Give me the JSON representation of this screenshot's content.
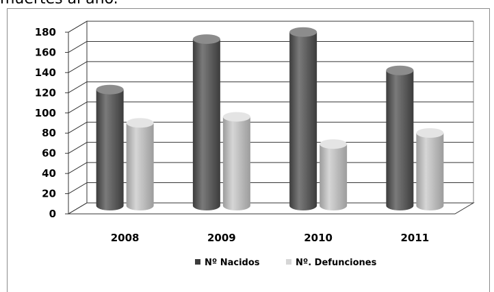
{
  "header_fragment": "muertes al año.",
  "colors": {
    "series1_light": "#7a7a7a",
    "series1_dark": "#3c3c3c",
    "series1_top": "#8c8c8c",
    "series2_light": "#d6d6d6",
    "series2_dark": "#9c9c9c",
    "series2_top": "#e4e4e4",
    "grid": "#333333",
    "floor": "#ffffff"
  },
  "chart_data": {
    "type": "bar",
    "categories": [
      "2008",
      "2009",
      "2010",
      "2011"
    ],
    "series": [
      {
        "name": "Nº Nacidos",
        "values": [
          115,
          165,
          172,
          134
        ]
      },
      {
        "name": "Nº. Defunciones",
        "values": [
          82,
          88,
          61,
          72
        ]
      }
    ],
    "ylim": [
      0,
      180
    ],
    "yticks": [
      0,
      20,
      40,
      60,
      80,
      100,
      120,
      140,
      160,
      180
    ],
    "grid": true,
    "legend": "bottom",
    "style": "3d-cylinder"
  }
}
